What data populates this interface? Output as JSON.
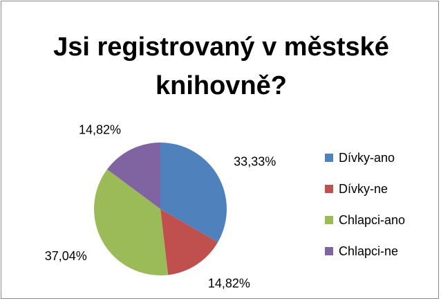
{
  "chart_data": {
    "type": "pie",
    "title": "Jsi registrovaný v městské knihovně?",
    "categories": [
      "Dívky-ano",
      "Dívky-ne",
      "Chlapci-ano",
      "Chlapci-ne"
    ],
    "values": [
      33.33,
      14.82,
      37.04,
      14.82
    ],
    "value_labels": [
      "33,33%",
      "14,82%",
      "37,04%",
      "14,82%"
    ],
    "colors": [
      "#4f81bd",
      "#c0504d",
      "#9bbb59",
      "#8064a2"
    ],
    "legend": "right"
  }
}
